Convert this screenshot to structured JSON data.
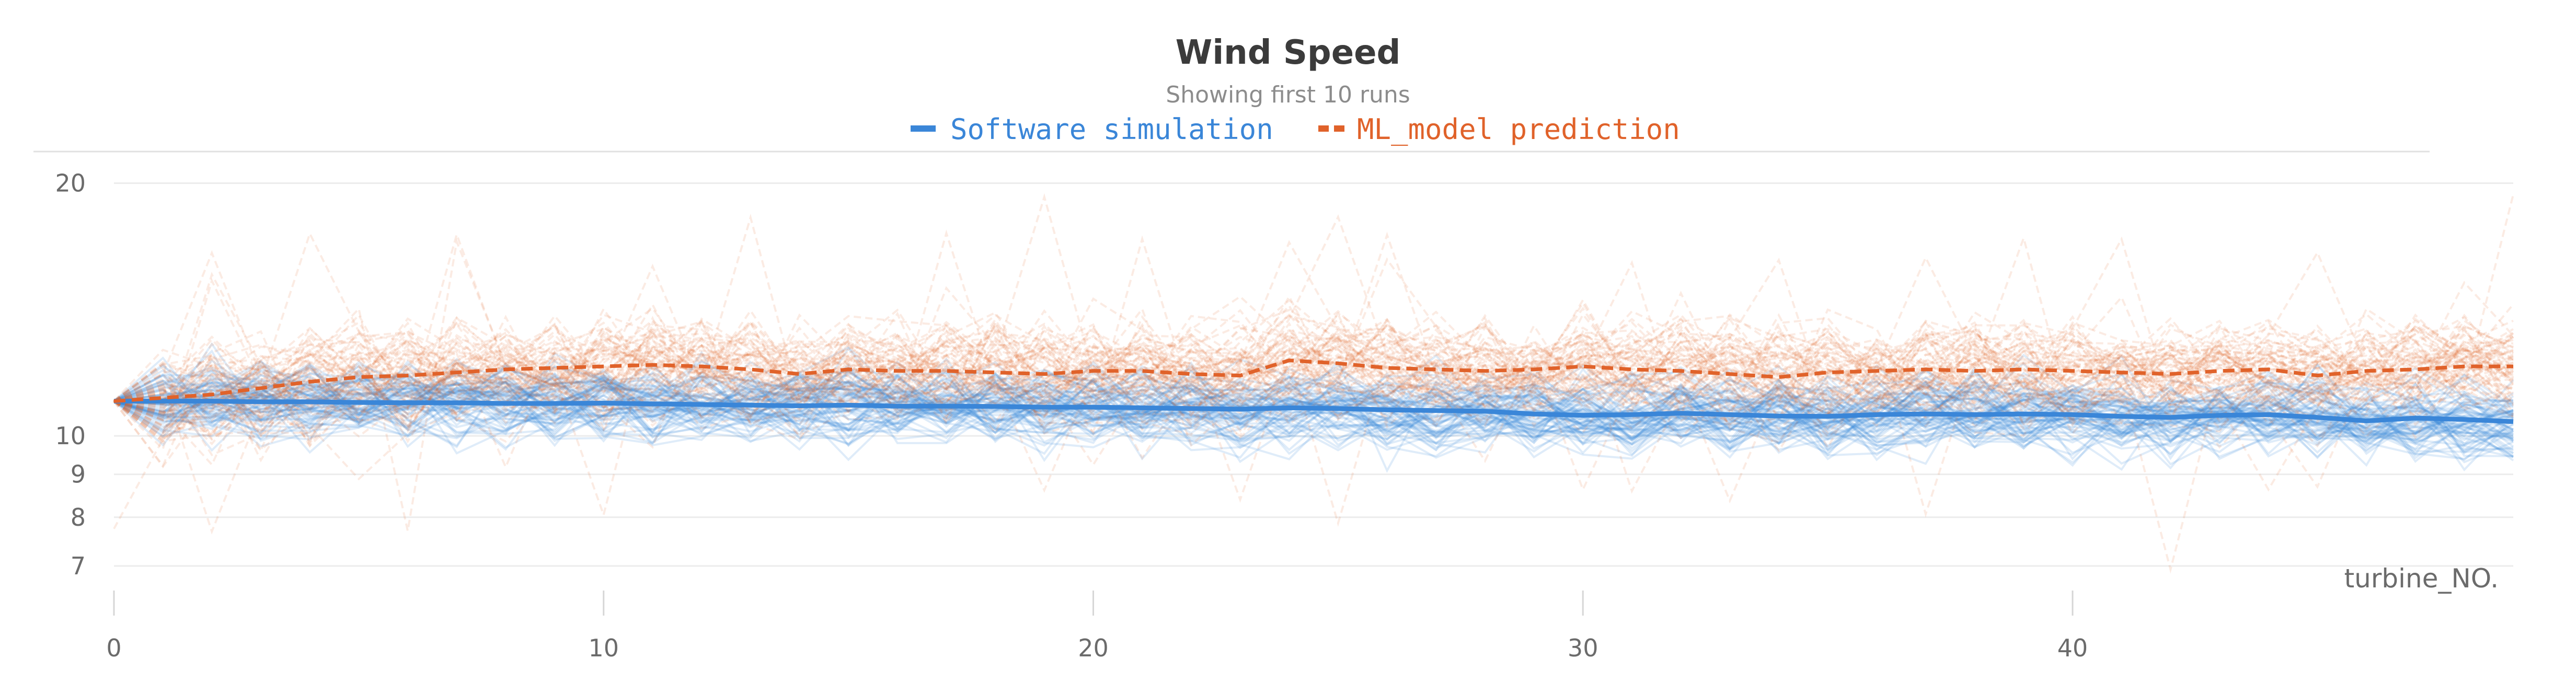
{
  "chart_data": {
    "type": "line",
    "title": "Wind Speed",
    "subtitle": "Showing first 10 runs",
    "xlabel": "turbine_NO.",
    "ylabel": "",
    "y_scale": "log",
    "xlim": [
      0,
      49
    ],
    "ylim": [
      6.6,
      21.5
    ],
    "x_ticks": [
      "0",
      "10",
      "20",
      "30",
      "40"
    ],
    "y_ticks": [
      "7",
      "8",
      "9",
      "10",
      "20"
    ],
    "grid": true,
    "legend_position": "top-center",
    "colors": {
      "software_simulation": "#3a86d8",
      "ml_model_prediction": "#e0622a",
      "grid": "#ececec",
      "axis_text": "#6b6b6b"
    },
    "x": [
      0,
      1,
      2,
      3,
      4,
      5,
      6,
      7,
      8,
      9,
      10,
      11,
      12,
      13,
      14,
      15,
      16,
      17,
      18,
      19,
      20,
      21,
      22,
      23,
      24,
      25,
      26,
      27,
      28,
      29,
      30,
      31,
      32,
      33,
      34,
      35,
      36,
      37,
      38,
      39,
      40,
      41,
      42,
      43,
      44,
      45,
      46,
      47,
      48,
      49
    ],
    "series": [
      {
        "name": "Software simulation",
        "style": "solid",
        "values": [
          11.0,
          11.0,
          11.0,
          10.98,
          10.98,
          10.96,
          10.95,
          10.95,
          10.93,
          10.93,
          10.94,
          10.92,
          10.9,
          10.88,
          10.86,
          10.88,
          10.85,
          10.85,
          10.84,
          10.82,
          10.82,
          10.8,
          10.78,
          10.76,
          10.8,
          10.78,
          10.74,
          10.72,
          10.7,
          10.62,
          10.58,
          10.6,
          10.64,
          10.6,
          10.56,
          10.55,
          10.6,
          10.62,
          10.6,
          10.62,
          10.6,
          10.55,
          10.52,
          10.58,
          10.6,
          10.52,
          10.42,
          10.5,
          10.46,
          10.4
        ]
      },
      {
        "name": "ML_model prediction",
        "style": "dashed",
        "values": [
          11.0,
          11.1,
          11.2,
          11.4,
          11.6,
          11.75,
          11.8,
          11.9,
          12.0,
          12.05,
          12.1,
          12.15,
          12.1,
          12.0,
          11.85,
          12.0,
          11.95,
          11.95,
          11.9,
          11.85,
          11.95,
          11.95,
          11.85,
          11.8,
          12.3,
          12.2,
          12.05,
          12.0,
          11.95,
          12.0,
          12.1,
          12.0,
          11.95,
          11.85,
          11.75,
          11.9,
          11.95,
          12.0,
          11.95,
          12.0,
          11.95,
          11.9,
          11.85,
          11.95,
          12.0,
          11.8,
          11.95,
          12.0,
          12.1,
          12.1
        ]
      }
    ]
  }
}
